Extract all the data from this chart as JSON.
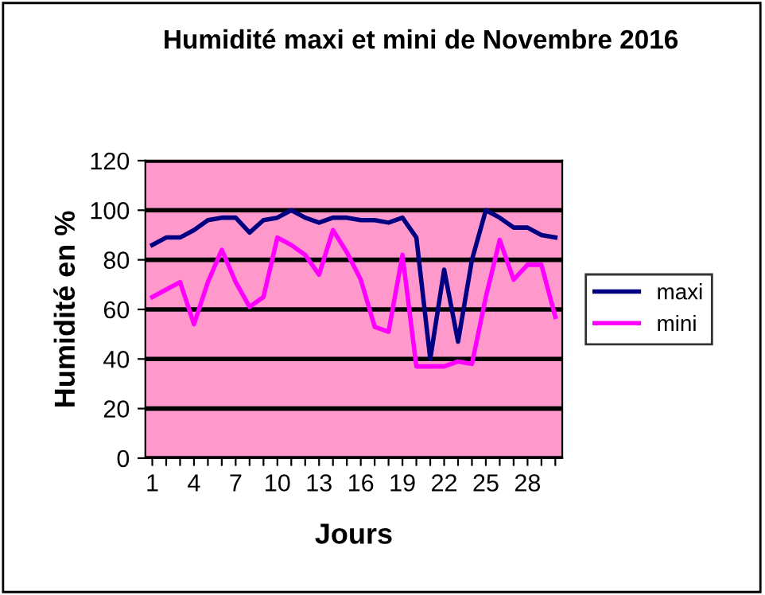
{
  "chart_data": {
    "type": "line",
    "title": "Humidité maxi et mini de Novembre 2016",
    "xlabel": "Jours",
    "ylabel": "Humidité en %",
    "categories": [
      "1",
      null,
      null,
      "4",
      null,
      null,
      "7",
      null,
      null,
      "10",
      null,
      null,
      "13",
      null,
      null,
      "16",
      null,
      null,
      "19",
      null,
      null,
      "22",
      null,
      null,
      "25",
      null,
      null,
      "28",
      null,
      null
    ],
    "series": [
      {
        "name": "maxi",
        "color": "#000080",
        "values": [
          86,
          89,
          89,
          92,
          96,
          97,
          97,
          91,
          96,
          97,
          100,
          97,
          95,
          97,
          97,
          96,
          96,
          95,
          97,
          89,
          40,
          76,
          47,
          80,
          100,
          97,
          93,
          93,
          90,
          89
        ]
      },
      {
        "name": "mini",
        "color": "#ff00ff",
        "values": [
          65,
          68,
          71,
          54,
          71,
          84,
          71,
          61,
          65,
          89,
          86,
          82,
          74,
          92,
          83,
          72,
          53,
          51,
          82,
          37,
          37,
          37,
          39,
          38,
          65,
          88,
          72,
          78,
          78,
          57
        ]
      }
    ],
    "ylim": [
      0,
      120
    ],
    "yticks": [
      0,
      20,
      40,
      60,
      80,
      100,
      120
    ],
    "grid": "y",
    "legend": "right",
    "marker": "none",
    "line_style": "solid"
  }
}
